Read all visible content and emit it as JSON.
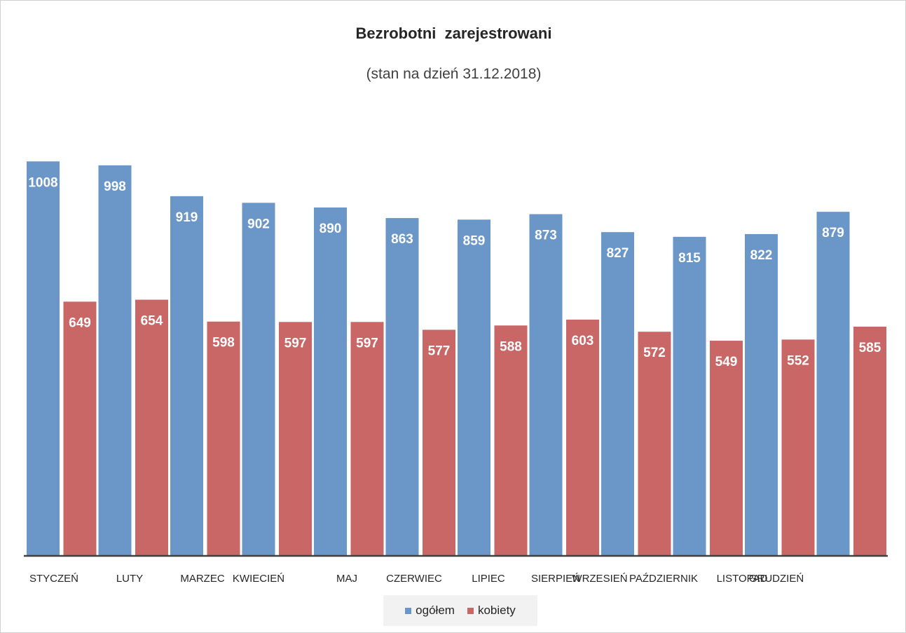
{
  "chart_data": {
    "type": "bar",
    "title": "Bezrobotni  zarejestrowani",
    "subtitle": "(stan na dzień 31.12.2018)",
    "categories": [
      "STYCZEŃ",
      "LUTY",
      "MARZEC",
      "KWIECIEŃ",
      "MAJ",
      "CZERWIEC",
      "LIPIEC",
      "SIERPIEŃ",
      "WRZESIEŃ",
      "PAŹDZIERNIK",
      "LISTOPAD",
      "GRUDZIEŃ"
    ],
    "series": [
      {
        "name": "ogółem",
        "color": "#6a96c8",
        "values": [
          1008,
          998,
          919,
          902,
          890,
          863,
          859,
          873,
          827,
          815,
          822,
          879
        ]
      },
      {
        "name": "kobiety",
        "color": "#c96766",
        "values": [
          649,
          654,
          598,
          597,
          597,
          577,
          588,
          603,
          572,
          549,
          552,
          585
        ]
      }
    ],
    "xlabel": "",
    "ylabel": "",
    "ylim": [
      0,
      1030
    ],
    "grid": false,
    "legend": "bottom"
  }
}
